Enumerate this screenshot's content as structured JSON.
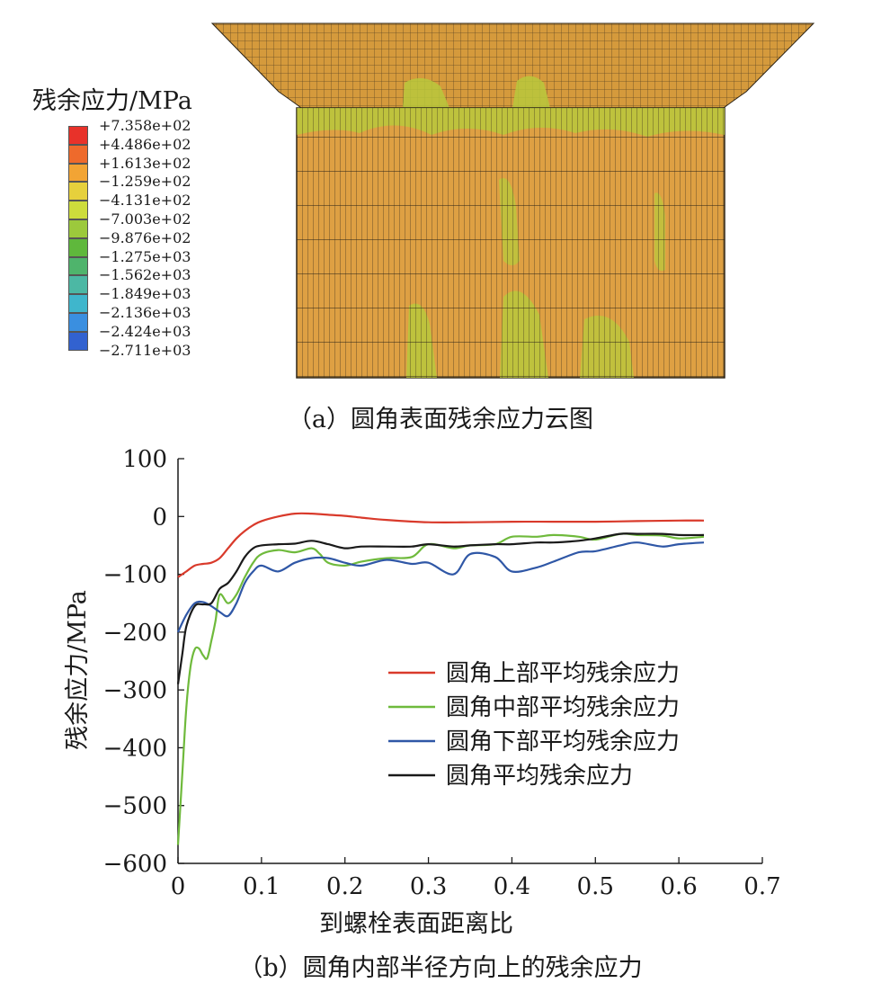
{
  "panel_a": {
    "legend_title": "残余应力/MPa",
    "contour_levels": [
      "+7.358e+02",
      "+4.486e+02",
      "+1.613e+02",
      "−1.259e+02",
      "−4.131e+02",
      "−7.003e+02",
      "−9.876e+02",
      "−1.275e+03",
      "−1.562e+03",
      "−1.849e+03",
      "−2.136e+03",
      "−2.424e+03",
      "−2.711e+03"
    ],
    "contour_colors": [
      "#e8322a",
      "#ee6a2c",
      "#f2a434",
      "#e6d03c",
      "#cddc3c",
      "#9cc93c",
      "#5fb83c",
      "#4fb46c",
      "#4cb8a4",
      "#3fb6cc",
      "#3a8fe0",
      "#3262d0",
      "#2a3ea8"
    ],
    "caption": "（a）圆角表面残余应力云图"
  },
  "panel_b": {
    "caption": "（b）圆角内部半径方向上的残余应力"
  },
  "chart_data": {
    "type": "line",
    "xlabel": "到螺栓表面距离比",
    "ylabel": "残余应力/MPa",
    "xlim": [
      0,
      0.7
    ],
    "ylim": [
      -600,
      100
    ],
    "xticks": [
      "0",
      "0.1",
      "0.2",
      "0.3",
      "0.4",
      "0.5",
      "0.6",
      "0.7"
    ],
    "yticks": [
      "100",
      "0",
      "−100",
      "−200",
      "−300",
      "−400",
      "−500",
      "−600"
    ],
    "grid": false,
    "legend_position": "center-right",
    "series": [
      {
        "name": "圆角上部平均残余应力",
        "color": "#d93a2b",
        "x": [
          0,
          0.01,
          0.02,
          0.03,
          0.04,
          0.05,
          0.06,
          0.07,
          0.08,
          0.09,
          0.1,
          0.12,
          0.14,
          0.16,
          0.18,
          0.2,
          0.22,
          0.25,
          0.3,
          0.35,
          0.4,
          0.45,
          0.5,
          0.55,
          0.6,
          0.63
        ],
        "y": [
          -105,
          -95,
          -85,
          -82,
          -80,
          -72,
          -55,
          -38,
          -25,
          -15,
          -8,
          0,
          5,
          5,
          3,
          1,
          -2,
          -6,
          -10,
          -10,
          -9,
          -9,
          -9,
          -8,
          -7,
          -7
        ]
      },
      {
        "name": "圆角中部平均残余应力",
        "color": "#6fba3c",
        "x": [
          0,
          0.005,
          0.01,
          0.015,
          0.02,
          0.025,
          0.03,
          0.035,
          0.04,
          0.045,
          0.05,
          0.06,
          0.07,
          0.08,
          0.09,
          0.1,
          0.12,
          0.14,
          0.16,
          0.17,
          0.18,
          0.2,
          0.22,
          0.25,
          0.28,
          0.3,
          0.33,
          0.35,
          0.38,
          0.4,
          0.43,
          0.45,
          0.48,
          0.5,
          0.53,
          0.55,
          0.58,
          0.6,
          0.63
        ],
        "y": [
          -568,
          -450,
          -330,
          -260,
          -230,
          -228,
          -240,
          -245,
          -215,
          -180,
          -135,
          -150,
          -135,
          -105,
          -80,
          -65,
          -58,
          -62,
          -55,
          -65,
          -80,
          -85,
          -78,
          -72,
          -70,
          -48,
          -55,
          -50,
          -48,
          -35,
          -35,
          -32,
          -35,
          -40,
          -30,
          -32,
          -33,
          -38,
          -35
        ]
      },
      {
        "name": "圆角下部平均残余应力",
        "color": "#2f57a6",
        "x": [
          0,
          0.01,
          0.02,
          0.03,
          0.04,
          0.05,
          0.06,
          0.07,
          0.08,
          0.09,
          0.1,
          0.12,
          0.14,
          0.16,
          0.18,
          0.2,
          0.22,
          0.25,
          0.28,
          0.3,
          0.33,
          0.35,
          0.38,
          0.4,
          0.43,
          0.45,
          0.48,
          0.5,
          0.53,
          0.55,
          0.58,
          0.6,
          0.63
        ],
        "y": [
          -200,
          -170,
          -150,
          -148,
          -155,
          -165,
          -172,
          -150,
          -115,
          -95,
          -85,
          -95,
          -80,
          -72,
          -72,
          -80,
          -85,
          -75,
          -82,
          -80,
          -100,
          -65,
          -70,
          -95,
          -88,
          -78,
          -62,
          -60,
          -50,
          -45,
          -52,
          -48,
          -45
        ]
      },
      {
        "name": "圆角平均残余应力",
        "color": "#1a1a1a",
        "x": [
          0,
          0.005,
          0.01,
          0.02,
          0.03,
          0.04,
          0.05,
          0.06,
          0.07,
          0.08,
          0.09,
          0.1,
          0.12,
          0.14,
          0.16,
          0.18,
          0.2,
          0.22,
          0.25,
          0.28,
          0.3,
          0.33,
          0.35,
          0.38,
          0.4,
          0.43,
          0.45,
          0.48,
          0.5,
          0.53,
          0.55,
          0.58,
          0.6,
          0.63
        ],
        "y": [
          -290,
          -240,
          -190,
          -155,
          -152,
          -150,
          -125,
          -115,
          -95,
          -70,
          -55,
          -50,
          -48,
          -47,
          -42,
          -48,
          -55,
          -52,
          -52,
          -52,
          -48,
          -52,
          -50,
          -48,
          -48,
          -45,
          -45,
          -42,
          -38,
          -30,
          -30,
          -30,
          -32,
          -32
        ]
      }
    ]
  }
}
